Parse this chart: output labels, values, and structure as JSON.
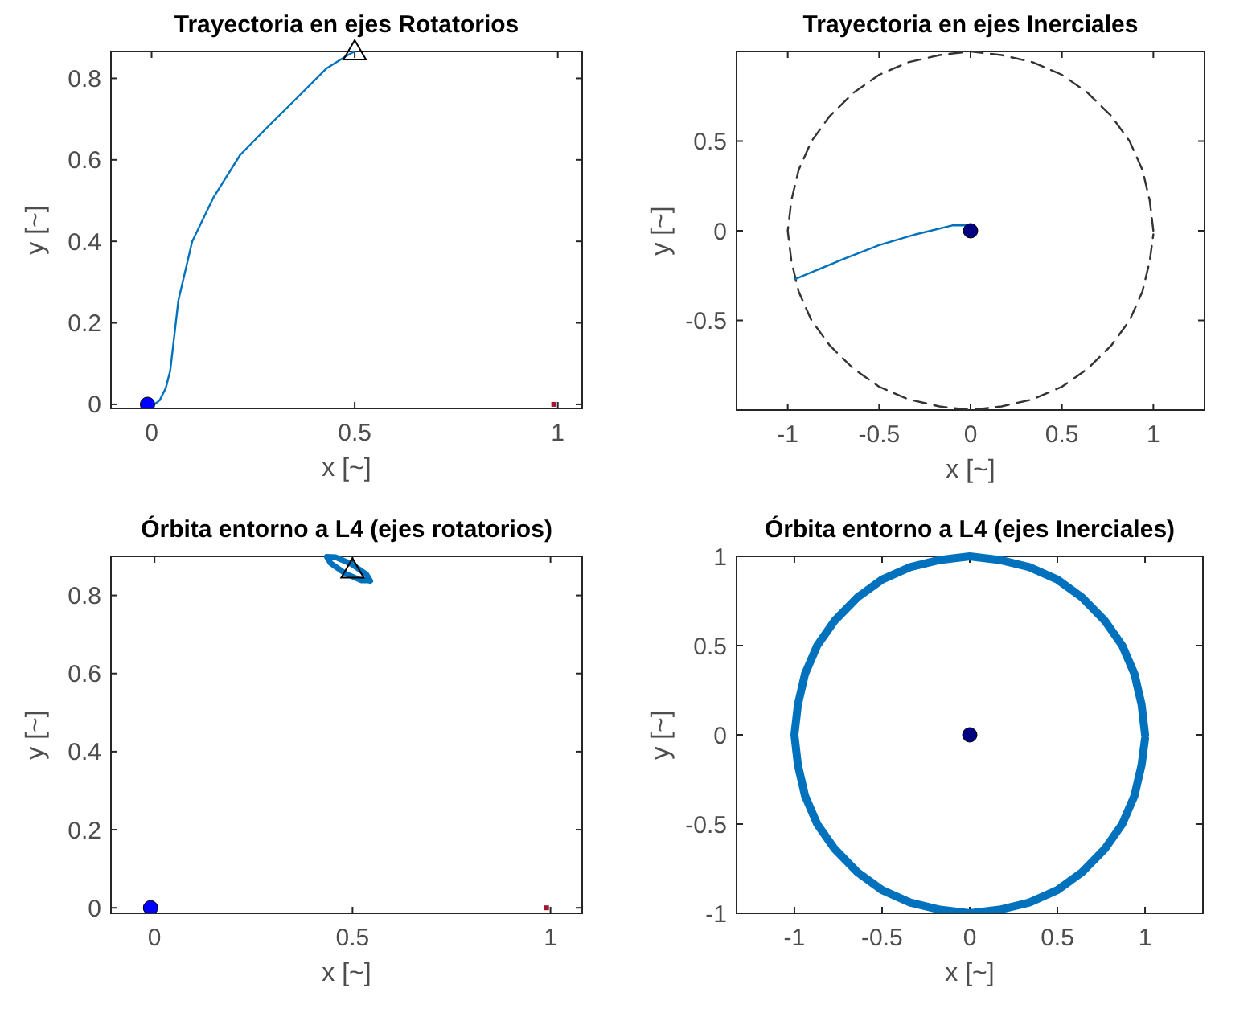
{
  "chart_data": [
    {
      "type": "line",
      "title": "Trayectoria en ejes Rotatorios",
      "xlabel": "x [~]",
      "ylabel": "y [~]",
      "xlim": [
        -0.1,
        1.06
      ],
      "ylim": [
        -0.01,
        0.866
      ],
      "xticks": [
        0,
        0.5,
        1
      ],
      "yticks": [
        0,
        0.2,
        0.4,
        0.6,
        0.8
      ],
      "grid": false,
      "series": [
        {
          "type": "line",
          "color": "#0072bd",
          "x": [
            0.007,
            0.02,
            0.035,
            0.046,
            0.066,
            0.1,
            0.152,
            0.218,
            0.284,
            0.364,
            0.43,
            0.483,
            0.5
          ],
          "values": [
            0,
            0.01,
            0.04,
            0.083,
            0.255,
            0.4,
            0.507,
            0.612,
            0.679,
            0.758,
            0.824,
            0.857,
            0.866
          ]
        },
        {
          "type": "scatter",
          "color": "#0000ff",
          "marker": "circle",
          "x": [
            -0.01
          ],
          "values": [
            0
          ]
        },
        {
          "type": "scatter",
          "color": "#000000",
          "marker": "triangle",
          "x": [
            0.5
          ],
          "values": [
            0.866
          ]
        },
        {
          "type": "scatter",
          "color": "#a2142f",
          "marker": "square",
          "x": [
            0.99
          ],
          "values": [
            0
          ]
        }
      ]
    },
    {
      "type": "line",
      "title": "Trayectoria en ejes Inerciales",
      "xlabel": "x [~]",
      "ylabel": "y [~]",
      "xlim": [
        -1.28,
        1.28
      ],
      "ylim": [
        -1,
        1
      ],
      "xticks": [
        -1,
        -0.5,
        0,
        0.5,
        1
      ],
      "yticks": [
        -0.5,
        0,
        0.5
      ],
      "grid": false,
      "series": [
        {
          "type": "line",
          "color": "#333333",
          "line_style": "dashed",
          "x": [
            1,
            0.98,
            0.94,
            0.87,
            0.77,
            0.64,
            0.5,
            0.34,
            0.17,
            0,
            -0.17,
            -0.34,
            -0.5,
            -0.64,
            -0.77,
            -0.87,
            -0.94,
            -0.98,
            -1,
            -0.98,
            -0.94,
            -0.87,
            -0.77,
            -0.64,
            -0.5,
            -0.34,
            -0.17,
            0,
            0.17,
            0.34,
            0.5,
            0.64,
            0.77,
            0.87,
            0.94,
            0.98,
            1
          ],
          "values": [
            0,
            0.17,
            0.34,
            0.5,
            0.64,
            0.77,
            0.87,
            0.94,
            0.98,
            1,
            0.98,
            0.94,
            0.87,
            0.77,
            0.64,
            0.5,
            0.34,
            0.17,
            0,
            -0.17,
            -0.34,
            -0.5,
            -0.64,
            -0.77,
            -0.87,
            -0.94,
            -0.98,
            -1,
            -0.98,
            -0.94,
            -0.87,
            -0.77,
            -0.64,
            -0.5,
            -0.34,
            -0.17,
            -0.02
          ]
        },
        {
          "type": "line",
          "color": "#0072bd",
          "x": [
            0,
            0.02,
            0,
            -0.1,
            -0.3,
            -0.5,
            -0.7,
            -0.96
          ],
          "values": [
            0,
            0.01,
            0.03,
            0.03,
            -0.02,
            -0.08,
            -0.16,
            -0.27
          ]
        },
        {
          "type": "scatter",
          "color": "#000080",
          "marker": "circle",
          "x": [
            0
          ],
          "values": [
            0
          ]
        }
      ]
    },
    {
      "type": "line",
      "title": "Órbita entorno a L4 (ejes rotatorios)",
      "xlabel": "x [~]",
      "ylabel": "y [~]",
      "xlim": [
        -0.11,
        1.08
      ],
      "ylim": [
        -0.014,
        0.9
      ],
      "xticks": [
        0,
        0.5,
        1
      ],
      "yticks": [
        0,
        0.2,
        0.4,
        0.6,
        0.8
      ],
      "grid": false,
      "series": [
        {
          "type": "line",
          "color": "#0072bd",
          "x": [
            0.545,
            0.535,
            0.498,
            0.457,
            0.435,
            0.445,
            0.482,
            0.523,
            0.542
          ],
          "values": [
            0.837,
            0.854,
            0.88,
            0.898,
            0.899,
            0.882,
            0.856,
            0.838,
            0.839
          ]
        },
        {
          "type": "scatter",
          "color": "#000000",
          "marker": "triangle",
          "x": [
            0.5
          ],
          "values": [
            0.866
          ]
        },
        {
          "type": "scatter",
          "color": "#0000ff",
          "marker": "circle",
          "x": [
            -0.01
          ],
          "values": [
            0
          ]
        },
        {
          "type": "scatter",
          "color": "#a2142f",
          "marker": "square",
          "x": [
            0.99
          ],
          "values": [
            0
          ]
        }
      ]
    },
    {
      "type": "line",
      "title": "Órbita entorno a L4 (ejes Inerciales)",
      "xlabel": "x [~]",
      "ylabel": "y [~]",
      "xlim": [
        -1.33,
        1.33
      ],
      "ylim": [
        -1,
        1
      ],
      "xticks": [
        -1,
        -0.5,
        0,
        0.5,
        1
      ],
      "yticks": [
        -1,
        -0.5,
        0,
        0.5,
        1
      ],
      "grid": false,
      "series": [
        {
          "type": "line",
          "color": "#0072bd",
          "x": [
            1,
            0.98,
            0.94,
            0.87,
            0.77,
            0.64,
            0.5,
            0.34,
            0.17,
            0,
            -0.17,
            -0.34,
            -0.5,
            -0.64,
            -0.77,
            -0.87,
            -0.94,
            -0.98,
            -1,
            -0.98,
            -0.94,
            -0.87,
            -0.77,
            -0.64,
            -0.5,
            -0.34,
            -0.17,
            0,
            0.17,
            0.34,
            0.5,
            0.64,
            0.77,
            0.87,
            0.94,
            0.98,
            1
          ],
          "values": [
            0,
            0.17,
            0.34,
            0.5,
            0.64,
            0.77,
            0.87,
            0.94,
            0.98,
            1,
            0.98,
            0.94,
            0.87,
            0.77,
            0.64,
            0.5,
            0.34,
            0.17,
            0,
            -0.17,
            -0.34,
            -0.5,
            -0.64,
            -0.77,
            -0.87,
            -0.94,
            -0.98,
            -1,
            -0.98,
            -0.94,
            -0.87,
            -0.77,
            -0.64,
            -0.5,
            -0.34,
            -0.17,
            -0.02
          ]
        },
        {
          "type": "scatter",
          "color": "#000080",
          "marker": "circle",
          "x": [
            0
          ],
          "values": [
            0
          ]
        }
      ]
    }
  ]
}
